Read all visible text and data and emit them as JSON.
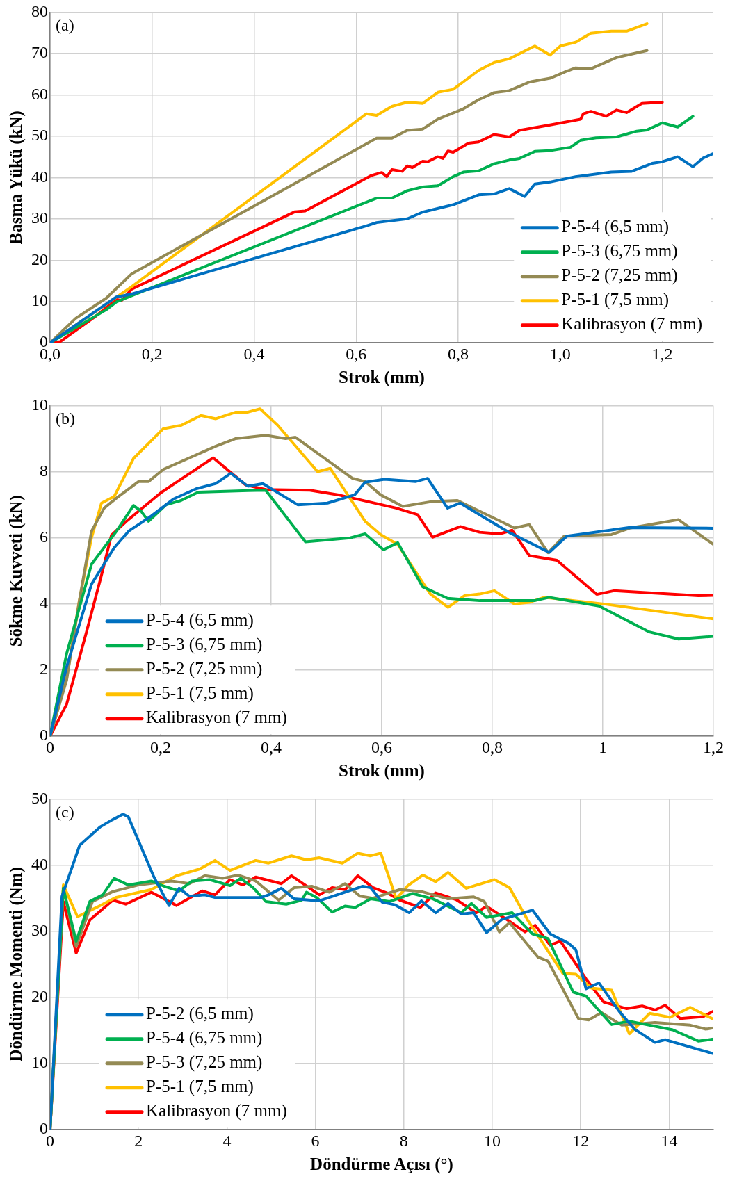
{
  "chart_data": [
    {
      "type": "line",
      "xlabel": "Strok (mm)",
      "ylabel": "Basma Yükü (kN)",
      "annotations": [
        "(a)"
      ],
      "xlim": [
        0,
        1.3
      ],
      "ylim": [
        0,
        80
      ],
      "xticks": [
        {
          "value": 0,
          "label": "0,0"
        },
        {
          "value": 0.2,
          "label": "0,2"
        },
        {
          "value": 0.4,
          "label": "0,4"
        },
        {
          "value": 0.6,
          "label": "0,6"
        },
        {
          "value": 0.8,
          "label": "0,8"
        },
        {
          "value": 1,
          "label": "1,0"
        },
        {
          "value": 1.2,
          "label": "1,2"
        }
      ],
      "yticks": [
        0,
        10,
        20,
        30,
        40,
        50,
        60,
        70,
        80
      ],
      "grid": true,
      "legend": "bottom right",
      "marker": "none",
      "line_style": "solid",
      "series": [
        {
          "name": "P-5-4 (6,5 mm)",
          "color": "#0070c0",
          "x": [
            0,
            0.13,
            0.16,
            0.62,
            0.64,
            0.7,
            0.73,
            0.79,
            0.84,
            0.87,
            0.9,
            0.93,
            0.95,
            0.98,
            1.03,
            1.1,
            1.14,
            1.18,
            1.2,
            1.23,
            1.26,
            1.28,
            1.3
          ],
          "values": [
            0,
            11.1,
            11.8,
            28.3,
            29.1,
            30,
            31.6,
            33.4,
            35.8,
            36,
            37.3,
            35.4,
            38.4,
            38.9,
            40.2,
            41.3,
            41.5,
            43.4,
            43.8,
            45,
            42.6,
            44.7,
            45.8
          ]
        },
        {
          "name": "P-5-3 (6,75 mm)",
          "color": "#00b050",
          "x": [
            0,
            0.11,
            0.13,
            0.16,
            0.64,
            0.67,
            0.7,
            0.73,
            0.76,
            0.79,
            0.81,
            0.84,
            0.87,
            0.9,
            0.92,
            0.95,
            0.98,
            1.02,
            1.04,
            1.07,
            1.11,
            1.15,
            1.17,
            1.2,
            1.23,
            1.26
          ],
          "values": [
            0,
            8,
            9.9,
            11.4,
            35,
            35,
            36.8,
            37.7,
            38,
            40.2,
            41.3,
            41.6,
            43.3,
            44.2,
            44.6,
            46.3,
            46.5,
            47.3,
            49,
            49.6,
            49.8,
            51.2,
            51.5,
            53.2,
            52.2,
            54.8
          ]
        },
        {
          "name": "P-5-2 (7,25 mm)",
          "color": "#948a54",
          "x": [
            0,
            0.05,
            0.11,
            0.16,
            0.64,
            0.67,
            0.7,
            0.73,
            0.76,
            0.81,
            0.84,
            0.87,
            0.9,
            0.94,
            0.98,
            1.01,
            1.03,
            1.06,
            1.11,
            1.17
          ],
          "values": [
            0,
            5.9,
            10.8,
            16.7,
            49.5,
            49.5,
            51.4,
            51.7,
            54.1,
            56.6,
            58.8,
            60.5,
            61,
            63.1,
            64,
            65.6,
            66.5,
            66.3,
            69,
            70.7
          ]
        },
        {
          "name": "P-5-1 (7,5 mm)",
          "color": "#ffc000",
          "x": [
            0,
            0.16,
            0.62,
            0.64,
            0.67,
            0.7,
            0.73,
            0.76,
            0.79,
            0.84,
            0.87,
            0.9,
            0.95,
            0.98,
            1,
            1.03,
            1.06,
            1.1,
            1.13,
            1.17
          ],
          "values": [
            0,
            13.6,
            55.4,
            55,
            57.2,
            58.2,
            57.9,
            60.6,
            61.3,
            65.9,
            67.8,
            68.7,
            71.8,
            69.6,
            71.8,
            72.7,
            74.9,
            75.4,
            75.4,
            77.2
          ]
        },
        {
          "name": "Kalibrasyon (7 mm)",
          "color": "#ff0000",
          "x": [
            0,
            0.02,
            0.09,
            0.13,
            0.14,
            0.16,
            0.48,
            0.5,
            0.63,
            0.65,
            0.66,
            0.67,
            0.69,
            0.7,
            0.71,
            0.73,
            0.74,
            0.76,
            0.77,
            0.78,
            0.79,
            0.82,
            0.84,
            0.87,
            0.9,
            0.92,
            0.98,
            1.04,
            1.045,
            1.06,
            1.09,
            1.11,
            1.13,
            1.16,
            1.2
          ],
          "values": [
            0,
            0.3,
            6.5,
            10.5,
            10.2,
            13,
            31.7,
            31.9,
            40.5,
            41.2,
            40.2,
            41.9,
            41.5,
            42.8,
            42.4,
            43.9,
            43.8,
            45,
            44.6,
            46.4,
            46.1,
            48.3,
            48.6,
            50.4,
            49.8,
            51.4,
            52.7,
            54.1,
            55.4,
            56,
            54.8,
            56.3,
            55.7,
            57.9,
            58.2
          ]
        }
      ]
    },
    {
      "type": "line",
      "xlabel": "Strok (mm)",
      "ylabel": "Sökme Kuvveti (kN)",
      "annotations": [
        "(b)"
      ],
      "xlim": [
        0,
        1.2
      ],
      "ylim": [
        0,
        10
      ],
      "xticks": [
        0,
        {
          "value": 0.2,
          "label": "0,2"
        },
        {
          "value": 0.4,
          "label": "0,4"
        },
        {
          "value": 0.6,
          "label": "0,6"
        },
        {
          "value": 0.8,
          "label": "0,8"
        },
        1,
        {
          "value": 1.2,
          "label": "1,2"
        }
      ],
      "yticks": [
        0,
        2,
        4,
        6,
        8,
        10
      ],
      "grid": true,
      "legend": "bottom left",
      "marker": "none",
      "line_style": "solid",
      "series": [
        {
          "name": "P-5-4 (6,5 mm)",
          "color": "#0070c0",
          "x": [
            0,
            0.03,
            0.075,
            0.116,
            0.142,
            0.183,
            0.223,
            0.264,
            0.3,
            0.327,
            0.358,
            0.385,
            0.448,
            0.502,
            0.551,
            0.57,
            0.605,
            0.661,
            0.683,
            0.719,
            0.742,
            0.831,
            0.903,
            0.935,
            1.047,
            1.2
          ],
          "values": [
            0,
            2.1,
            4.6,
            5.7,
            6.2,
            6.66,
            7.17,
            7.48,
            7.64,
            7.95,
            7.56,
            7.64,
            7,
            7.05,
            7.3,
            7.68,
            7.77,
            7.7,
            7.8,
            6.9,
            7.05,
            6.16,
            5.56,
            6.05,
            6.31,
            6.29
          ]
        },
        {
          "name": "P-5-3 (6,75 mm)",
          "color": "#00b050",
          "x": [
            0,
            0.03,
            0.075,
            0.12,
            0.151,
            0.165,
            0.178,
            0.21,
            0.237,
            0.268,
            0.358,
            0.39,
            0.462,
            0.543,
            0.57,
            0.603,
            0.629,
            0.674,
            0.719,
            0.777,
            0.876,
            0.903,
            0.993,
            1.083,
            1.137,
            1.2
          ],
          "values": [
            0,
            2.5,
            5.2,
            6.2,
            6.98,
            6.8,
            6.5,
            7,
            7.13,
            7.38,
            7.43,
            7.44,
            5.88,
            6,
            6.12,
            5.64,
            5.85,
            4.52,
            4.17,
            4.1,
            4.1,
            4.2,
            3.94,
            3.16,
            2.94,
            3.02
          ]
        },
        {
          "name": "P-5-2 (7,25 mm)",
          "color": "#948a54",
          "x": [
            0,
            0.03,
            0.053,
            0.075,
            0.098,
            0.12,
            0.16,
            0.178,
            0.205,
            0.3,
            0.336,
            0.39,
            0.426,
            0.444,
            0.547,
            0.57,
            0.598,
            0.638,
            0.692,
            0.737,
            0.84,
            0.867,
            0.901,
            0.93,
            1.016,
            1.05,
            1.137,
            1.2
          ],
          "values": [
            0,
            1.7,
            4.1,
            6.2,
            6.9,
            7.2,
            7.7,
            7.7,
            8.07,
            8.77,
            9,
            9.1,
            9,
            9.04,
            7.8,
            7.7,
            7.3,
            6.95,
            7.1,
            7.13,
            6.3,
            6.4,
            5.55,
            6.05,
            6.1,
            6.3,
            6.55,
            5.8
          ]
        },
        {
          "name": "P-5-1 (7,5 mm)",
          "color": "#ffc000",
          "x": [
            0,
            0.03,
            0.053,
            0.075,
            0.093,
            0.116,
            0.151,
            0.205,
            0.237,
            0.273,
            0.3,
            0.336,
            0.358,
            0.38,
            0.412,
            0.484,
            0.507,
            0.57,
            0.598,
            0.629,
            0.688,
            0.72,
            0.75,
            0.777,
            0.804,
            0.84,
            0.867,
            0.894,
            1.002,
            1.2
          ],
          "values": [
            0,
            1.75,
            4.1,
            6,
            7.05,
            7.25,
            8.4,
            9.3,
            9.4,
            9.7,
            9.6,
            9.8,
            9.8,
            9.9,
            9.4,
            8,
            8.1,
            6.5,
            6.1,
            5.8,
            4.3,
            3.9,
            4.25,
            4.3,
            4.4,
            4,
            4.05,
            4.2,
            4,
            3.55
          ]
        },
        {
          "name": "Kalibrasyon (7 mm)",
          "color": "#ff0000",
          "x": [
            0,
            0.03,
            0.066,
            0.093,
            0.111,
            0.138,
            0.201,
            0.295,
            0.354,
            0.39,
            0.47,
            0.524,
            0.626,
            0.665,
            0.692,
            0.742,
            0.777,
            0.813,
            0.836,
            0.867,
            0.917,
            0.989,
            1.02,
            1.173,
            1.2
          ],
          "values": [
            0,
            0.97,
            3.16,
            4.87,
            6.08,
            6.5,
            7.37,
            8.42,
            7.6,
            7.46,
            7.44,
            7.29,
            6.9,
            6.7,
            6.02,
            6.34,
            6.17,
            6.12,
            6.23,
            5.46,
            5.32,
            4.29,
            4.4,
            4.25,
            4.26
          ]
        }
      ]
    },
    {
      "type": "line",
      "xlabel": "Döndürme Açısı (°)",
      "ylabel": "Döndürme Momenti (Nm)",
      "annotations": [
        "(c)"
      ],
      "xlim": [
        0,
        15
      ],
      "ylim": [
        0,
        50
      ],
      "xticks": [
        0,
        2,
        4,
        6,
        8,
        10,
        12,
        14
      ],
      "yticks": [
        0,
        10,
        20,
        30,
        40,
        50
      ],
      "grid": true,
      "legend": "bottom left",
      "marker": "none",
      "line_style": "solid",
      "series": [
        {
          "name": "P-5-2 (6,5 mm)",
          "color": "#0070c0",
          "x": [
            0,
            0.27,
            0.67,
            1.14,
            1.42,
            1.65,
            1.77,
            2.35,
            2.69,
            2.92,
            3.15,
            3.5,
            3.73,
            4.77,
            4.94,
            5.23,
            5.52,
            6.09,
            7.07,
            7.25,
            7.51,
            7.8,
            8.12,
            8.4,
            8.72,
            9,
            9.3,
            9.58,
            9.87,
            10.22,
            10.91,
            11.31,
            11.72,
            11.89,
            12.12,
            12.41,
            12.87,
            13.22,
            13.68,
            13.91,
            15
          ],
          "values": [
            0,
            35.3,
            43,
            45.8,
            46.9,
            47.7,
            47.3,
            38.2,
            33.9,
            36.5,
            35.3,
            35.5,
            35.1,
            35.1,
            35.5,
            36.5,
            34.9,
            34.6,
            36.8,
            36.6,
            34.4,
            34,
            32.8,
            34.6,
            32.8,
            34.2,
            32.6,
            32.8,
            29.8,
            31.8,
            33.2,
            29.6,
            28.2,
            27.2,
            21.3,
            22.2,
            17.9,
            15.2,
            13.2,
            13.6,
            11.5
          ]
        },
        {
          "name": "P-5-4 (6,75 mm)",
          "color": "#00b050",
          "x": [
            0,
            0.3,
            0.59,
            0.9,
            1.19,
            1.45,
            1.77,
            2.29,
            2.58,
            2.92,
            3.21,
            3.61,
            4.07,
            4.31,
            4.59,
            4.88,
            5.34,
            5.69,
            5.8,
            6.03,
            6.38,
            6.67,
            6.9,
            7.25,
            7.68,
            8.2,
            8.66,
            9.3,
            9.53,
            9.87,
            10.45,
            10.91,
            11.26,
            11.83,
            12.12,
            12.7,
            13.1,
            14.08,
            14.66,
            15
          ],
          "values": [
            0,
            36.5,
            28.5,
            34.5,
            35.5,
            38,
            37,
            37.6,
            36.8,
            36.1,
            37.6,
            37.8,
            36.9,
            38,
            36.6,
            34.5,
            34.1,
            34.7,
            35.9,
            35.1,
            32.9,
            33.8,
            33.6,
            34.9,
            34.5,
            35.7,
            34.9,
            32.8,
            34.2,
            32.1,
            32.8,
            29.6,
            28.9,
            20.8,
            20.2,
            15.9,
            16.4,
            15.1,
            13.4,
            13.7
          ]
        },
        {
          "name": "P-5-3 (7,25 mm)",
          "color": "#948a54",
          "x": [
            0,
            0.3,
            0.59,
            0.96,
            1.42,
            2,
            2.75,
            3.15,
            3.5,
            3.9,
            4.25,
            4.65,
            5.17,
            5.52,
            5.92,
            6.32,
            6.67,
            7.01,
            7.3,
            7.91,
            8.4,
            9,
            9.58,
            9.82,
            10.16,
            10.39,
            11.03,
            11.26,
            11.95,
            12.18,
            12.47,
            12.93,
            13.68,
            14.48,
            14.83,
            15
          ],
          "values": [
            0,
            36.5,
            27.7,
            34.5,
            36,
            37,
            37.6,
            37.2,
            38.4,
            38,
            38.5,
            37.6,
            34.7,
            36.6,
            36.8,
            35.9,
            37.2,
            35.3,
            35,
            36.3,
            36,
            34.9,
            35.2,
            34.5,
            29.9,
            31.3,
            26.1,
            25.5,
            16.8,
            16.6,
            17.7,
            15.8,
            16.2,
            15.8,
            15.2,
            15.4
          ]
        },
        {
          "name": "P-5-1 (7,5 mm)",
          "color": "#ffc000",
          "x": [
            0,
            0.3,
            0.62,
            1.02,
            1.48,
            2.29,
            2.86,
            3.38,
            3.73,
            4.07,
            4.65,
            4.94,
            5.46,
            5.8,
            6.09,
            6.61,
            6.96,
            7.24,
            7.48,
            7.83,
            8.09,
            8.43,
            8.72,
            9,
            9.41,
            10.05,
            10.39,
            10.8,
            11.6,
            11.89,
            12.24,
            12.7,
            13.1,
            13.56,
            14.02,
            14.48,
            15
          ],
          "values": [
            0,
            37,
            32.2,
            33.5,
            35.1,
            36.3,
            38.4,
            39.4,
            40.7,
            39.2,
            40.7,
            40.3,
            41.4,
            40.8,
            41.1,
            40.3,
            41.8,
            41.4,
            41.8,
            34.9,
            36.9,
            38.5,
            37.5,
            38.9,
            36.5,
            37.8,
            36.6,
            31.7,
            23.6,
            23.5,
            21.4,
            21.1,
            14.5,
            17.6,
            17,
            18.5,
            16.7
          ]
        },
        {
          "name": "Kalibrasyon (7 mm)",
          "color": "#ff0000",
          "x": [
            0,
            0.3,
            0.59,
            0.9,
            1.42,
            1.71,
            2.29,
            2.86,
            3.44,
            3.73,
            4.07,
            4.36,
            4.65,
            5.23,
            5.46,
            6.09,
            6.38,
            6.67,
            6.96,
            7.3,
            7.65,
            7.91,
            8.37,
            8.72,
            9.18,
            9.64,
            9.87,
            10.39,
            10.74,
            10.97,
            11.31,
            11.54,
            12.12,
            12.52,
            13.04,
            13.39,
            13.68,
            13.91,
            14.25,
            14.77,
            15
          ],
          "values": [
            0,
            34.5,
            26.7,
            31.7,
            34.7,
            34.1,
            35.9,
            33.9,
            36.1,
            35.5,
            37.8,
            37,
            38.2,
            37.2,
            38.4,
            35.5,
            36.6,
            36.3,
            38.4,
            36.6,
            35.7,
            34.7,
            33.6,
            35.8,
            34.8,
            32.8,
            33.8,
            31.5,
            29.9,
            30.9,
            27.9,
            28.5,
            22.8,
            19.3,
            18.3,
            18.7,
            18.1,
            18.8,
            16.8,
            17.1,
            17.9
          ]
        }
      ]
    }
  ]
}
